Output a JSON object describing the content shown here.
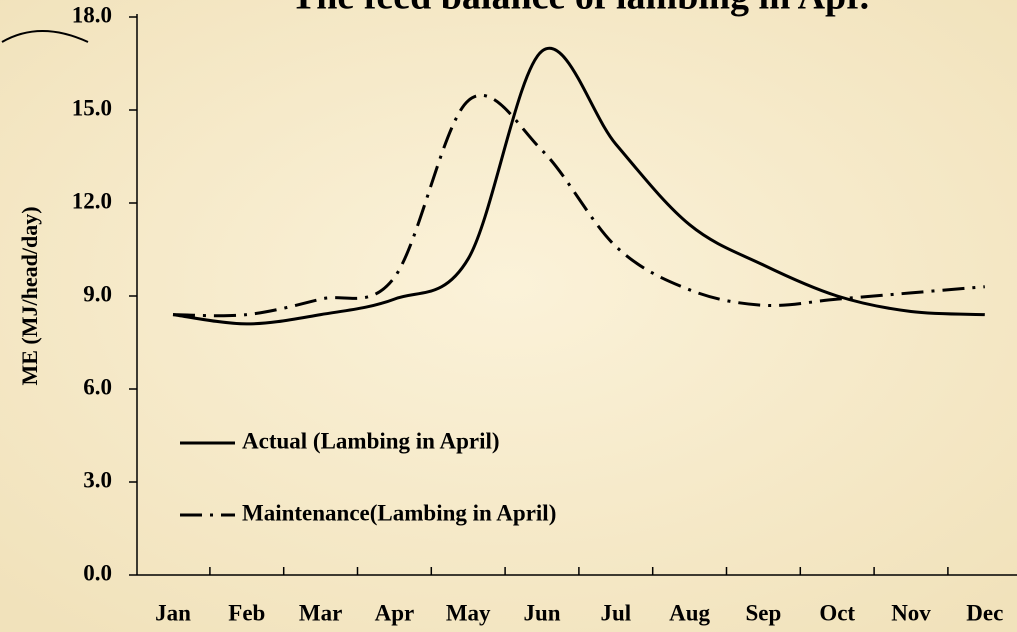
{
  "chart_data": {
    "type": "line",
    "title": "The feed balance of lambing in Apr.",
    "y_label": "ME (MJ/head/day)",
    "categories": [
      "Jan",
      "Feb",
      "Mar",
      "Apr",
      "May",
      "Jun",
      "Jul",
      "Aug",
      "Sep",
      "Oct",
      "Nov",
      "Dec"
    ],
    "series": [
      {
        "name": "Actual (Lambing in April)",
        "color": "#000000",
        "style": "solid",
        "values": [
          8.4,
          8.1,
          8.4,
          8.9,
          10.2,
          16.9,
          13.9,
          11.3,
          10.0,
          9.0,
          8.5,
          8.4
        ]
      },
      {
        "name": "Maintenance(Lambing in April)",
        "color": "#000000",
        "style": "dashdot",
        "values": [
          8.4,
          8.4,
          8.9,
          9.6,
          15.3,
          13.7,
          10.6,
          9.2,
          8.7,
          8.9,
          9.1,
          9.3
        ]
      }
    ],
    "ylim": [
      0,
      18
    ],
    "yticks": [
      {
        "value": 0,
        "label": "0.0"
      },
      {
        "value": 3,
        "label": "3.0"
      },
      {
        "value": 6,
        "label": "6.0"
      },
      {
        "value": 9,
        "label": "9.0"
      },
      {
        "value": 12,
        "label": "12.0"
      },
      {
        "value": 15,
        "label": "15.0"
      },
      {
        "value": 18,
        "label": "18.0"
      }
    ],
    "grid": false
  }
}
